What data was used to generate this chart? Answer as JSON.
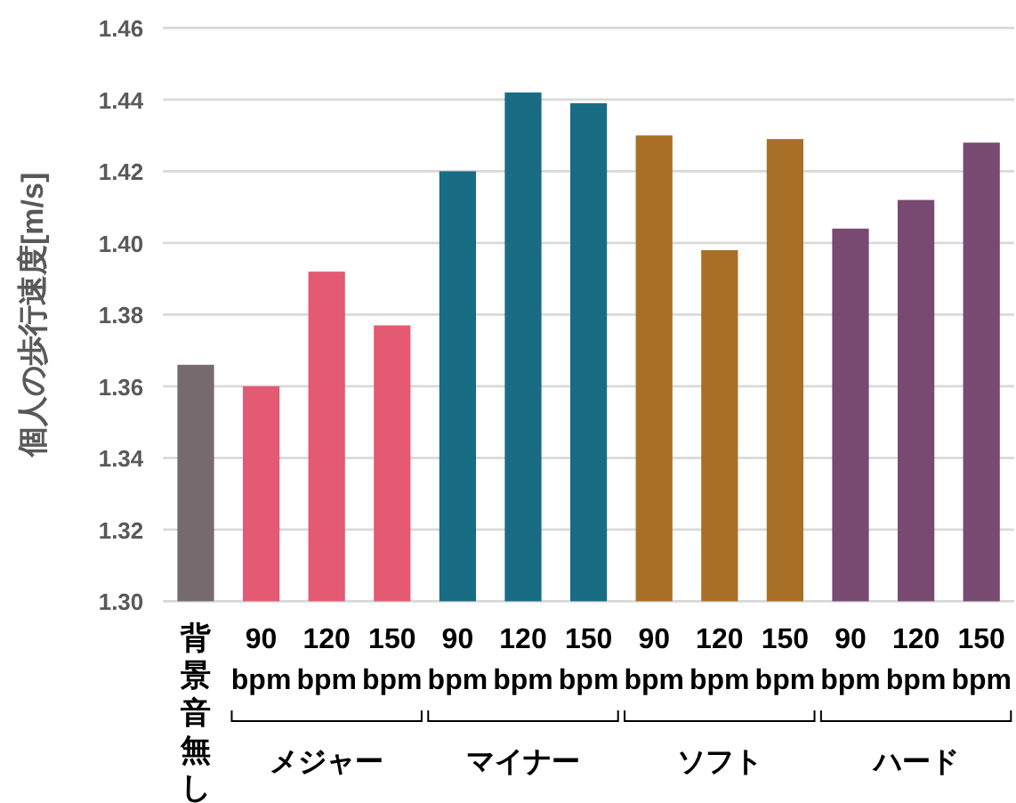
{
  "chart_data": {
    "type": "bar",
    "ylabel": "個人の歩行速度[m/s]",
    "categories": [
      "背景音無し",
      "90 bpm",
      "120 bpm",
      "150 bpm",
      "90 bpm",
      "120 bpm",
      "150 bpm",
      "90 bpm",
      "120 bpm",
      "150 bpm",
      "90 bpm",
      "120 bpm",
      "150 bpm"
    ],
    "values": [
      1.366,
      1.36,
      1.392,
      1.377,
      1.42,
      1.442,
      1.439,
      1.43,
      1.398,
      1.429,
      1.404,
      1.412,
      1.428
    ],
    "colors": [
      "#766a6f",
      "#e35a72",
      "#e35a72",
      "#e35a72",
      "#186c84",
      "#186c84",
      "#186c84",
      "#a86f26",
      "#a86f26",
      "#a86f26",
      "#784a72",
      "#784a72",
      "#784a72"
    ],
    "ylim": [
      1.3,
      1.46
    ],
    "yticks": [
      {
        "value": 1.3,
        "label": "1.30"
      },
      {
        "value": 1.32,
        "label": "1.32"
      },
      {
        "value": 1.34,
        "label": "1.34"
      },
      {
        "value": 1.36,
        "label": "1.36"
      },
      {
        "value": 1.38,
        "label": "1.38"
      },
      {
        "value": 1.4,
        "label": "1.40"
      },
      {
        "value": 1.42,
        "label": "1.42"
      },
      {
        "value": 1.44,
        "label": "1.44"
      },
      {
        "value": 1.46,
        "label": "1.46"
      }
    ],
    "grid": "y",
    "annotations": [
      "メジャー",
      "マイナー",
      "ソフト",
      "ハード"
    ]
  }
}
